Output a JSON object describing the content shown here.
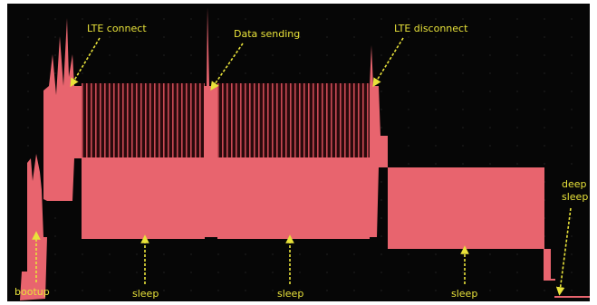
{
  "annotations": {
    "lte_connect": "LTE connect",
    "data_sending": "Data sending",
    "lte_disconnect": "LTE disconnect",
    "deep_sleep": [
      "deep",
      "sleep"
    ],
    "bootup": "bootup",
    "sleep_1": "sleep",
    "sleep_2": "sleep",
    "sleep_3": "sleep"
  }
}
